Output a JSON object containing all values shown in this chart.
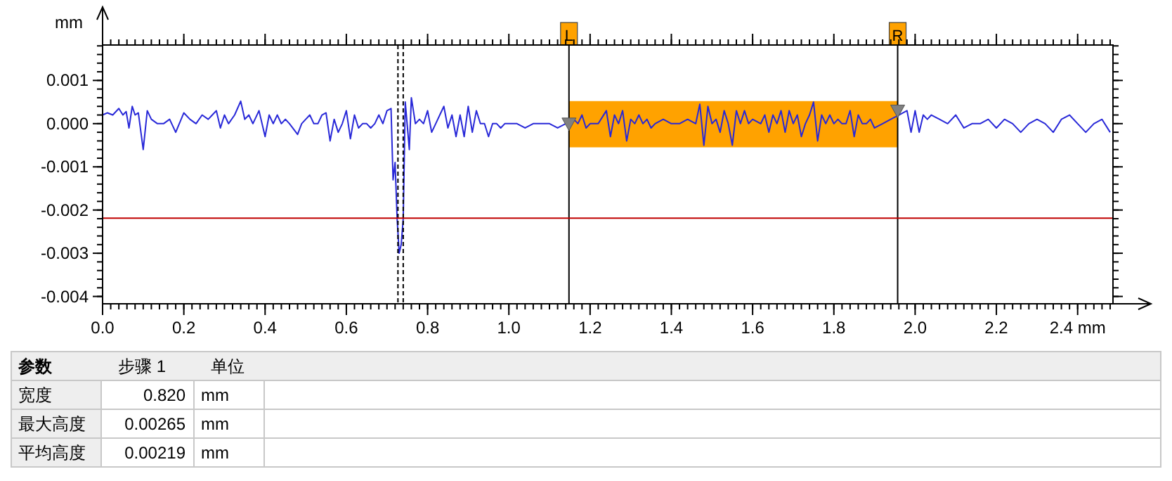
{
  "chart_data": {
    "type": "line",
    "ylabel": "mm",
    "xlim": [
      0,
      2.487
    ],
    "ylim": [
      -0.00417,
      0.00182
    ],
    "xticks": [
      {
        "value": 0,
        "label": "0.0"
      },
      {
        "value": 0.2,
        "label": "0.2"
      },
      {
        "value": 0.4,
        "label": "0.4"
      },
      {
        "value": 0.6,
        "label": "0.6"
      },
      {
        "value": 0.8,
        "label": "0.8"
      },
      {
        "value": 1,
        "label": "1.0"
      },
      {
        "value": 1.2,
        "label": "1.2"
      },
      {
        "value": 1.4,
        "label": "1.4"
      },
      {
        "value": 1.6,
        "label": "1.6"
      },
      {
        "value": 1.8,
        "label": "1.8"
      },
      {
        "value": 2,
        "label": "2.0"
      },
      {
        "value": 2.2,
        "label": "2.2"
      },
      {
        "value": 2.4,
        "label": "2.4 mm"
      }
    ],
    "yticks": [
      {
        "value": -0.004,
        "label": "-0.004"
      },
      {
        "value": -0.003,
        "label": "-0.003"
      },
      {
        "value": -0.002,
        "label": "-0.002"
      },
      {
        "value": -0.001,
        "label": "-0.001"
      },
      {
        "value": 0,
        "label": "0.000"
      },
      {
        "value": 0.001,
        "label": "0.001"
      }
    ],
    "series": [
      {
        "color": "#2828d8",
        "x": [
          0,
          0.012,
          0.025,
          0.04,
          0.05,
          0.058,
          0.065,
          0.073,
          0.08,
          0.088,
          0.1,
          0.11,
          0.12,
          0.135,
          0.15,
          0.165,
          0.18,
          0.2,
          0.215,
          0.23,
          0.245,
          0.26,
          0.27,
          0.28,
          0.29,
          0.3,
          0.31,
          0.325,
          0.34,
          0.35,
          0.36,
          0.37,
          0.385,
          0.4,
          0.41,
          0.42,
          0.43,
          0.44,
          0.45,
          0.46,
          0.48,
          0.49,
          0.5,
          0.51,
          0.52,
          0.53,
          0.54,
          0.55,
          0.56,
          0.57,
          0.58,
          0.59,
          0.6,
          0.61,
          0.62,
          0.63,
          0.64,
          0.65,
          0.66,
          0.67,
          0.68,
          0.69,
          0.7,
          0.71,
          0.715,
          0.72,
          0.725,
          0.73,
          0.735,
          0.74,
          0.745,
          0.755,
          0.76,
          0.77,
          0.78,
          0.79,
          0.8,
          0.81,
          0.82,
          0.83,
          0.84,
          0.85,
          0.86,
          0.87,
          0.88,
          0.89,
          0.9,
          0.91,
          0.92,
          0.93,
          0.94,
          0.95,
          0.96,
          0.97,
          0.98,
          0.99,
          1,
          1.02,
          1.04,
          1.06,
          1.08,
          1.1,
          1.12,
          1.14,
          1.16,
          1.17,
          1.18,
          1.19,
          1.2,
          1.22,
          1.24,
          1.25,
          1.26,
          1.27,
          1.28,
          1.29,
          1.3,
          1.31,
          1.32,
          1.33,
          1.34,
          1.35,
          1.36,
          1.38,
          1.4,
          1.42,
          1.44,
          1.46,
          1.47,
          1.48,
          1.49,
          1.5,
          1.51,
          1.52,
          1.53,
          1.54,
          1.55,
          1.56,
          1.57,
          1.58,
          1.59,
          1.6,
          1.62,
          1.63,
          1.64,
          1.65,
          1.66,
          1.67,
          1.68,
          1.69,
          1.7,
          1.71,
          1.72,
          1.73,
          1.74,
          1.75,
          1.76,
          1.77,
          1.78,
          1.79,
          1.8,
          1.81,
          1.82,
          1.83,
          1.84,
          1.85,
          1.86,
          1.87,
          1.88,
          1.89,
          1.9,
          1.92,
          1.94,
          1.96,
          1.98,
          1.99,
          2,
          2.01,
          2.02,
          2.03,
          2.04,
          2.06,
          2.08,
          2.1,
          2.12,
          2.14,
          2.16,
          2.18,
          2.2,
          2.22,
          2.24,
          2.26,
          2.28,
          2.3,
          2.32,
          2.34,
          2.36,
          2.38,
          2.4,
          2.42,
          2.44,
          2.46,
          2.48
        ],
        "values": [
          0.0002,
          0.00025,
          0.0002,
          0.00035,
          0.0002,
          0.00028,
          -0.0001,
          0.0004,
          0.0002,
          0.00025,
          -0.0006,
          0.0003,
          0.0001,
          0,
          0,
          0.0001,
          -0.0002,
          0.00025,
          0.0001,
          0,
          0.0002,
          0.0001,
          0.0002,
          0.0003,
          -0.0001,
          0.0002,
          0,
          0.0002,
          0.00052,
          0.0001,
          0.0002,
          0,
          0.0003,
          -0.0003,
          0.0002,
          0,
          0.0002,
          0,
          0.0001,
          0,
          -0.00025,
          0,
          0.0001,
          0.0002,
          0,
          0,
          0.0002,
          0.00025,
          -0.0004,
          0.0001,
          -0.0002,
          0,
          0.0003,
          -0.00035,
          0.0002,
          -0.0001,
          0,
          0,
          -0.0001,
          0,
          0.0002,
          0,
          0.0003,
          0.00035,
          -0.0013,
          -0.0009,
          -0.0022,
          -0.003,
          -0.0028,
          -0.0022,
          0.0005,
          -0.0006,
          0.0006,
          0,
          0.0001,
          0,
          0.0003,
          -0.0002,
          0,
          0.0002,
          0.0004,
          -0.0001,
          0.0002,
          -0.0003,
          0.0002,
          -0.0003,
          0.0004,
          -0.0002,
          0.0003,
          0,
          0,
          -0.0003,
          0,
          0,
          -0.0001,
          0,
          0,
          0,
          -0.0001,
          0,
          0,
          0,
          -0.0001,
          0,
          0.0001,
          0,
          0.0002,
          -0.0001,
          0,
          0,
          0.0003,
          -0.0003,
          0.0002,
          0,
          0.0003,
          -0.0004,
          0.0001,
          0,
          0.0002,
          0,
          0.0001,
          -0.0001,
          0,
          0.0001,
          0,
          0,
          0.0001,
          0,
          0.00045,
          -0.0005,
          0.0004,
          0,
          0.0001,
          -0.0002,
          0.0003,
          0,
          -0.0005,
          0.0003,
          0,
          0.0003,
          0,
          0.0001,
          0,
          0.0002,
          -0.0002,
          0.0002,
          0,
          0.0003,
          -0.0002,
          0.0003,
          0,
          0.0002,
          -0.0003,
          0,
          0.0002,
          0.0005,
          -0.0004,
          0.0002,
          0,
          0.0002,
          0,
          0.0001,
          0,
          0,
          0.0003,
          -0.0003,
          0.0002,
          0,
          0,
          0.0001,
          -0.0001,
          0,
          0.0001,
          0.0002,
          0.0003,
          -0.0002,
          0.0003,
          -0.0002,
          0.0002,
          0.0001,
          0.0002,
          0.0001,
          0,
          0.0002,
          -0.0001,
          0,
          0,
          0.0001,
          -0.0001,
          0.0001,
          0,
          -0.0002,
          0,
          0.0001,
          0,
          -0.0002,
          0.0001,
          0.0002,
          0,
          -0.0002,
          0,
          0.0001,
          -0.0002
        ]
      },
      {
        "type": "area",
        "color": "#ffa200",
        "x": [
          1.148,
          1.957
        ],
        "values": [
          null,
          null
        ],
        "lower": [
          -0.00055,
          -0.00055
        ],
        "upper": [
          0.00052,
          0.00052
        ]
      },
      {
        "type": "scatter",
        "color": "#808080",
        "marker": "triangle",
        "x": [
          1.148,
          1.957
        ],
        "values": [
          0,
          0.0003
        ]
      }
    ],
    "ref_lines": [
      {
        "axis": "x",
        "value": 0.727,
        "line_style": "dashed",
        "color": "#000000"
      },
      {
        "axis": "x",
        "value": 0.74,
        "line_style": "dashed",
        "color": "#000000"
      },
      {
        "axis": "x",
        "value": 1.148,
        "label": "L",
        "line_style": "solid",
        "color": "#000000"
      },
      {
        "axis": "x",
        "value": 1.957,
        "label": "R",
        "line_style": "solid",
        "color": "#000000"
      },
      {
        "axis": "y",
        "value": -0.00219,
        "line_style": "solid",
        "color": "#c00000"
      }
    ],
    "annotations": [
      "参数",
      "步骤 1",
      "单位",
      "宽度",
      "0.820",
      "mm",
      "最大高度",
      "0.00265",
      "mm",
      "平均高度",
      "0.00219",
      "mm"
    ]
  }
}
